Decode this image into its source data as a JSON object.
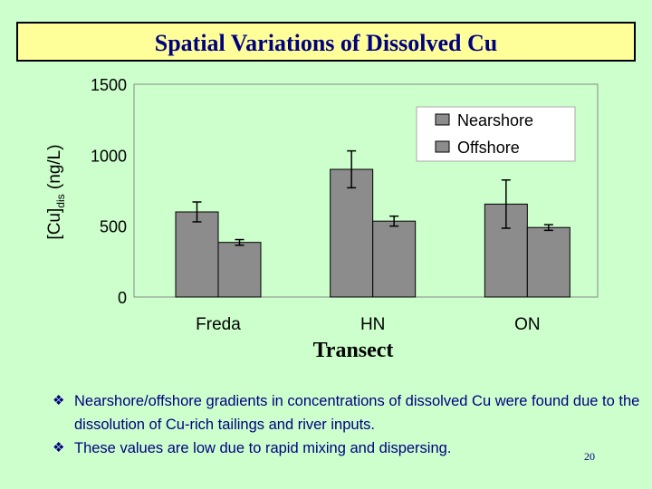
{
  "slide": {
    "title": "Spatial Variations of Dissolved Cu",
    "page_number": "20",
    "bullets": [
      "Nearshore/offshore gradients in concentrations of dissolved Cu were found due to the dissolution of Cu-rich tailings and river inputs.",
      "These values are low due to rapid mixing and dispersing."
    ],
    "bullet_icon": "diamond-bullet-icon"
  },
  "colors": {
    "background": "#CCFFCC",
    "title_box": "#FFFF99",
    "text": "#000080",
    "bar": "#8C8C8C"
  },
  "chart_data": {
    "type": "bar",
    "title": "",
    "xlabel": "Transect",
    "ylabel_main": "[Cu]",
    "ylabel_sub": "dis",
    "ylabel_unit": " (ng/L)",
    "categories": [
      "Freda",
      "HN",
      "ON"
    ],
    "series": [
      {
        "name": "Nearshore",
        "values": [
          600,
          900,
          655
        ],
        "errors": [
          70,
          130,
          170
        ]
      },
      {
        "name": "Offshore",
        "values": [
          385,
          535,
          490
        ],
        "errors": [
          20,
          35,
          20
        ]
      }
    ],
    "ylim": [
      0,
      1500
    ],
    "yticks": [
      "0",
      "500",
      "1000",
      "1500"
    ],
    "grid": false,
    "legend": "top-right"
  }
}
